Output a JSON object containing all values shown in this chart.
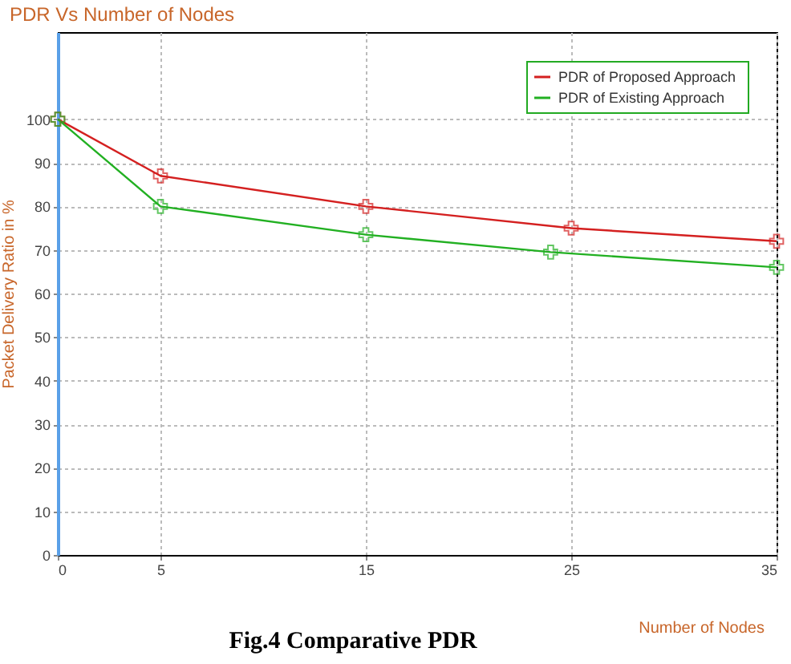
{
  "chart_data": {
    "type": "line",
    "title": "PDR  Vs Number of Nodes",
    "xlabel": "Number of Nodes",
    "ylabel": "Packet Delivery Ratio in %",
    "annotations": [
      "Fig.4 Comparative PDR"
    ],
    "xlim": [
      0,
      35
    ],
    "xticks": [
      0,
      5,
      15,
      25,
      35
    ],
    "ylim": [
      0,
      120
    ],
    "yticks": [
      0,
      10,
      20,
      30,
      40,
      50,
      60,
      70,
      80,
      90,
      100
    ],
    "grid": true,
    "legend": "top right",
    "marker": "cross",
    "series": [
      {
        "name": "PDR of  Proposed Approach",
        "color": "#d42020",
        "x": [
          0,
          5,
          15,
          25,
          35
        ],
        "values": [
          100,
          87,
          80,
          75,
          72
        ]
      },
      {
        "name": "PDR of Existing Approach",
        "color": "#22b022",
        "x": [
          0,
          5,
          15,
          24,
          35
        ],
        "values": [
          100,
          80,
          73.5,
          69.5,
          66
        ]
      }
    ]
  }
}
